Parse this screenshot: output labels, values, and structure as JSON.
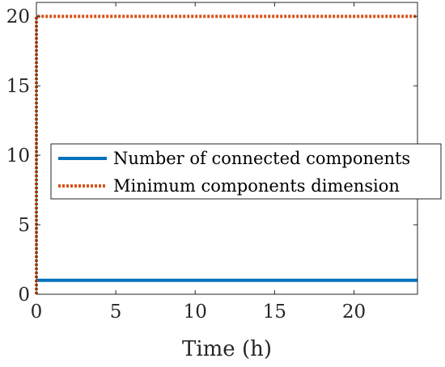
{
  "chart_data": {
    "type": "line",
    "xlabel": "Time (h)",
    "ylabel": "",
    "xlim": [
      0,
      24
    ],
    "ylim": [
      0,
      21
    ],
    "xticks": [
      0,
      5,
      10,
      15,
      20
    ],
    "yticks": [
      0,
      5,
      10,
      15,
      20
    ],
    "grid": false,
    "legend_position": "center-right",
    "series": [
      {
        "name": "Number of connected components",
        "color": "#0072BD",
        "style": "solid",
        "x": [
          0,
          24
        ],
        "y": [
          1,
          1
        ]
      },
      {
        "name": "Minimum components dimension",
        "color": "#D95319",
        "style": "dotted",
        "x": [
          0,
          0,
          24
        ],
        "y": [
          0,
          20,
          20
        ]
      }
    ]
  }
}
